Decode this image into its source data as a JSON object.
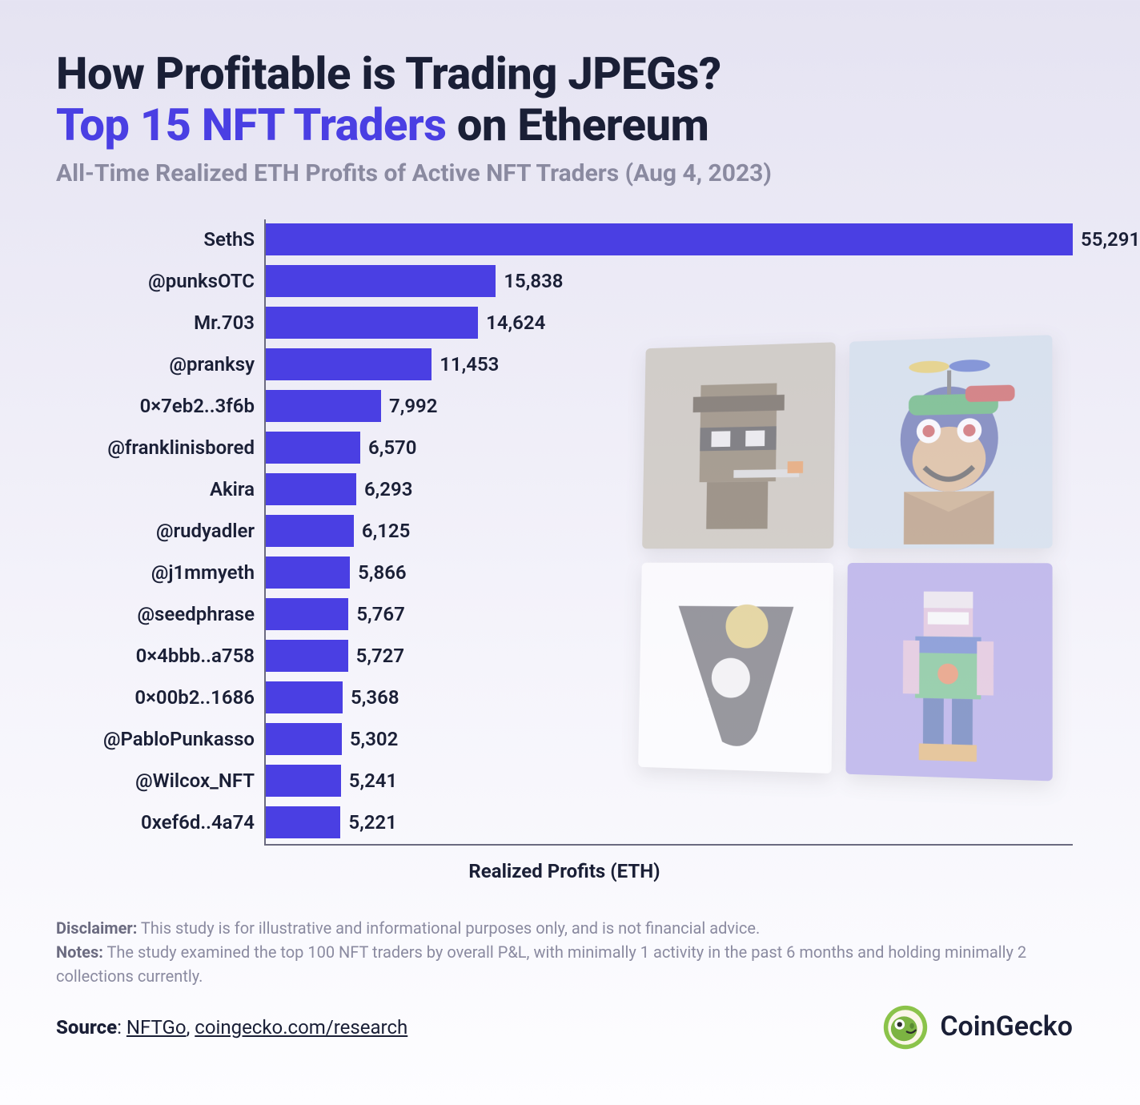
{
  "title": {
    "line1": "How Profitable is Trading JPEGs?",
    "line2_accent": "Top 15 NFT Traders",
    "line2_rest": " on Ethereum",
    "subtitle": "All-Time Realized ETH Profits of Active NFT Traders (Aug 4, 2023)",
    "title_fontsize": 56,
    "title_color": "#1a1f36",
    "accent_color": "#4a3fe3",
    "subtitle_fontsize": 30,
    "subtitle_color": "#8a8aa0"
  },
  "chart": {
    "type": "bar-horizontal",
    "xlabel": "Realized Profits (ETH)",
    "bar_color": "#4a3fe3",
    "axis_color": "#6b6b80",
    "label_fontsize": 24,
    "value_fontsize": 24,
    "xmax": 55291,
    "data": [
      {
        "label": "SethS",
        "value": 55291,
        "display": "55,291"
      },
      {
        "label": "@punksOTC",
        "value": 15838,
        "display": "15,838"
      },
      {
        "label": "Mr.703",
        "value": 14624,
        "display": "14,624"
      },
      {
        "label": "@pranksy",
        "value": 11453,
        "display": "11,453"
      },
      {
        "label": "0×7eb2..3f6b",
        "value": 7992,
        "display": "7,992"
      },
      {
        "label": "@franklinisbored",
        "value": 6570,
        "display": "6,570"
      },
      {
        "label": "Akira",
        "value": 6293,
        "display": "6,293"
      },
      {
        "label": "@rudyadler",
        "value": 6125,
        "display": "6,125"
      },
      {
        "label": "@j1mmyeth",
        "value": 5866,
        "display": "5,866"
      },
      {
        "label": "@seedphrase",
        "value": 5767,
        "display": "5,767"
      },
      {
        "label": "0×4bbb..a758",
        "value": 5727,
        "display": "5,727"
      },
      {
        "label": "0×00b2..1686",
        "value": 5368,
        "display": "5,368"
      },
      {
        "label": "@PabloPunkasso",
        "value": 5302,
        "display": "5,302"
      },
      {
        "label": "@Wilcox_NFT",
        "value": 5241,
        "display": "5,241"
      },
      {
        "label": "0xef6d..4a74",
        "value": 5221,
        "display": "5,221"
      }
    ]
  },
  "nft_tiles": {
    "opacity": 0.55,
    "tiles": [
      {
        "bg": "#b9b2a4",
        "kind": "punk"
      },
      {
        "bg": "#c7d6e8",
        "kind": "ape"
      },
      {
        "bg": "#ffffff",
        "kind": "shape"
      },
      {
        "bg": "#9a8de0",
        "kind": "voxel"
      }
    ]
  },
  "footer": {
    "disclaimer_label": "Disclaimer:",
    "disclaimer_text": " This study is for illustrative and informational purposes only, and is not financial advice.",
    "notes_label": "Notes:",
    "notes_text": " The study examined the top 100 NFT traders by overall P&L, with minimally 1 activity in the past 6 months and holding minimally 2 collections currently.",
    "source_label": "Source",
    "source_sep": ": ",
    "source1": "NFTGo",
    "source_comma": ", ",
    "source2": "coingecko.com/research",
    "brand": "CoinGecko",
    "text_color": "#8a8aa0",
    "text_fontsize": 20
  },
  "colors": {
    "bg_top": "#e5e3f2",
    "bg_bottom": "#fdfdff"
  }
}
